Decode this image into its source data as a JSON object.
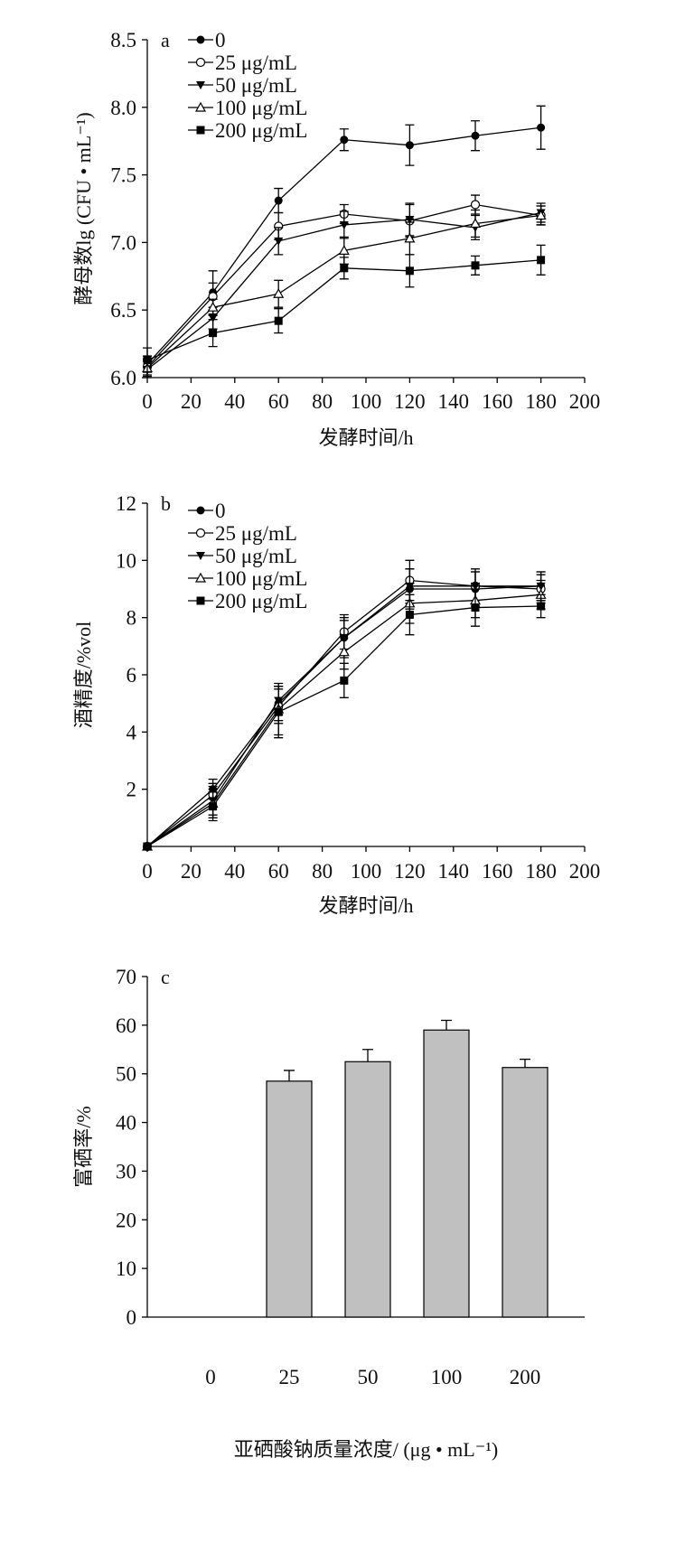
{
  "chart_data": [
    {
      "type": "line",
      "panel": "a",
      "xlabel": "发酵时间/h",
      "ylabel": "酵母数lg (CFU • mL⁻¹)",
      "xlim": [
        0,
        200
      ],
      "ylim": [
        6.0,
        8.5
      ],
      "xticks": [
        0,
        20,
        40,
        60,
        80,
        100,
        120,
        140,
        160,
        180,
        200
      ],
      "yticks": [
        "6.0",
        "6.5",
        "7.0",
        "7.5",
        "8.0",
        "8.5"
      ],
      "x": [
        0,
        30,
        60,
        90,
        120,
        150,
        180
      ],
      "legend_position": "top-left",
      "series": [
        {
          "name": "0",
          "marker": "filled-circle",
          "values": [
            6.1,
            6.63,
            7.31,
            7.76,
            7.72,
            7.79,
            7.85
          ],
          "errors": [
            0.06,
            0.16,
            0.09,
            0.08,
            0.15,
            0.11,
            0.16
          ]
        },
        {
          "name": "25 μg/mL",
          "marker": "open-circle",
          "values": [
            6.08,
            6.6,
            7.12,
            7.21,
            7.16,
            7.28,
            7.2
          ],
          "errors": [
            0.06,
            0.1,
            0.1,
            0.07,
            0.12,
            0.07,
            0.07
          ]
        },
        {
          "name": "50 μg/mL",
          "marker": "filled-triangle-down",
          "values": [
            6.06,
            6.44,
            7.01,
            7.13,
            7.17,
            7.11,
            7.22
          ],
          "errors": [
            0.06,
            0.08,
            0.1,
            0.1,
            0.12,
            0.09,
            0.07
          ]
        },
        {
          "name": "100 μg/mL",
          "marker": "open-triangle",
          "values": [
            6.07,
            6.52,
            6.62,
            6.94,
            7.03,
            7.14,
            7.2
          ],
          "errors": [
            0.06,
            0.06,
            0.1,
            0.1,
            0.12,
            0.1,
            0.07
          ]
        },
        {
          "name": "200 μg/mL",
          "marker": "filled-square",
          "values": [
            6.13,
            6.33,
            6.42,
            6.81,
            6.79,
            6.83,
            6.87
          ],
          "errors": [
            0.09,
            0.1,
            0.09,
            0.08,
            0.12,
            0.07,
            0.11
          ]
        }
      ]
    },
    {
      "type": "line",
      "panel": "b",
      "xlabel": "发酵时间/h",
      "ylabel": "酒精度/%vol",
      "xlim": [
        0,
        200
      ],
      "ylim": [
        0,
        12
      ],
      "xticks": [
        0,
        20,
        40,
        60,
        80,
        100,
        120,
        140,
        160,
        180,
        200
      ],
      "yticks": [
        "2",
        "4",
        "6",
        "8",
        "10",
        "12"
      ],
      "x": [
        0,
        30,
        60,
        90,
        120,
        150,
        180
      ],
      "legend_position": "top-left",
      "series": [
        {
          "name": "0",
          "marker": "filled-circle",
          "values": [
            0,
            2.0,
            5.0,
            7.3,
            9.0,
            9.0,
            9.1
          ],
          "errors": [
            0,
            0.35,
            0.6,
            0.7,
            0.7,
            0.6,
            0.5
          ]
        },
        {
          "name": "25 μg/mL",
          "marker": "open-circle",
          "values": [
            0,
            1.8,
            4.9,
            7.5,
            9.3,
            9.1,
            9.0
          ],
          "errors": [
            0,
            0.4,
            0.6,
            0.6,
            0.7,
            0.6,
            0.5
          ]
        },
        {
          "name": "50 μg/mL",
          "marker": "filled-triangle-down",
          "values": [
            0,
            1.6,
            5.1,
            7.3,
            9.1,
            9.1,
            9.1
          ],
          "errors": [
            0,
            0.5,
            0.5,
            0.6,
            0.6,
            0.5,
            0.5
          ]
        },
        {
          "name": "100 μg/mL",
          "marker": "open-triangle",
          "values": [
            0,
            1.5,
            4.8,
            6.8,
            8.5,
            8.6,
            8.8
          ],
          "errors": [
            0,
            0.5,
            0.9,
            0.6,
            0.7,
            0.6,
            0.5
          ]
        },
        {
          "name": "200 μg/mL",
          "marker": "filled-square",
          "values": [
            0,
            1.4,
            4.7,
            5.8,
            8.1,
            8.35,
            8.4
          ],
          "errors": [
            0,
            0.5,
            0.9,
            0.6,
            0.7,
            0.65,
            0.4
          ]
        }
      ]
    },
    {
      "type": "bar",
      "panel": "c",
      "xlabel": "亚硒酸钠质量浓度/ (μg • mL⁻¹)",
      "ylabel": "富硒率/%",
      "ylim": [
        0,
        70
      ],
      "yticks": [
        "0",
        "10",
        "20",
        "30",
        "40",
        "50",
        "60",
        "70"
      ],
      "categories": [
        "0",
        "25",
        "50",
        "100",
        "200"
      ],
      "values": [
        0,
        48.5,
        52.5,
        59.0,
        51.3
      ],
      "errors": [
        0,
        2.2,
        2.5,
        2.0,
        1.7
      ],
      "bar_color": "#c0c0c0"
    }
  ]
}
